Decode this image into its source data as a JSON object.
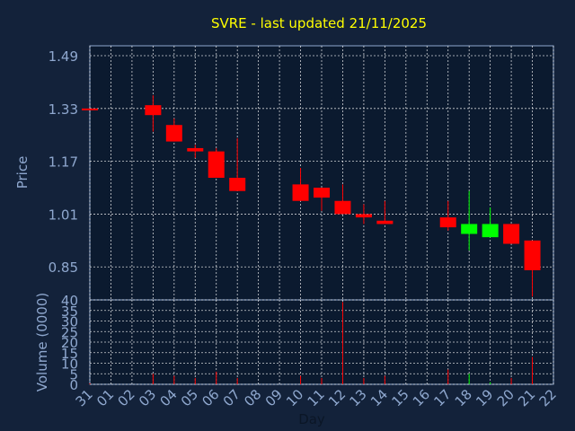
{
  "chart_data": [
    {
      "type": "candlestick",
      "title": "SVRE - last updated 21/11/2025",
      "ylabel": "Price",
      "ylim": [
        0.75,
        1.52
      ],
      "yticks": [
        "1.49",
        "1.33",
        "1.17",
        "1.01",
        "0.85"
      ],
      "grid": true,
      "up_color": "#00ff00",
      "down_color": "#ff0000",
      "candles": [
        {
          "x": "31",
          "open": 1.33,
          "high": 1.33,
          "low": 1.33,
          "close": 1.33
        },
        {
          "x": "03",
          "open": 1.34,
          "high": 1.37,
          "low": 1.26,
          "close": 1.31
        },
        {
          "x": "04",
          "open": 1.28,
          "high": 1.3,
          "low": 1.23,
          "close": 1.23
        },
        {
          "x": "05",
          "open": 1.21,
          "high": 1.22,
          "low": 1.18,
          "close": 1.2
        },
        {
          "x": "06",
          "open": 1.2,
          "high": 1.21,
          "low": 1.12,
          "close": 1.12
        },
        {
          "x": "07",
          "open": 1.12,
          "high": 1.24,
          "low": 1.08,
          "close": 1.08
        },
        {
          "x": "10",
          "open": 1.1,
          "high": 1.15,
          "low": 1.05,
          "close": 1.05
        },
        {
          "x": "11",
          "open": 1.09,
          "high": 1.09,
          "low": 1.02,
          "close": 1.06
        },
        {
          "x": "12",
          "open": 1.05,
          "high": 1.1,
          "low": 1.01,
          "close": 1.01
        },
        {
          "x": "13",
          "open": 1.01,
          "high": 1.04,
          "low": 0.98,
          "close": 1.0
        },
        {
          "x": "14",
          "open": 0.99,
          "high": 1.05,
          "low": 0.98,
          "close": 0.98
        },
        {
          "x": "17",
          "open": 1.0,
          "high": 1.05,
          "low": 0.96,
          "close": 0.97
        },
        {
          "x": "18",
          "open": 0.95,
          "high": 1.08,
          "low": 0.9,
          "close": 0.98
        },
        {
          "x": "19",
          "open": 0.94,
          "high": 1.03,
          "low": 0.94,
          "close": 0.98
        },
        {
          "x": "20",
          "open": 0.98,
          "high": 0.98,
          "low": 0.92,
          "close": 0.92
        },
        {
          "x": "21",
          "open": 0.93,
          "high": 0.93,
          "low": 0.76,
          "close": 0.84
        }
      ]
    },
    {
      "type": "bar",
      "ylabel": "Volume (0000)",
      "ylim": [
        0,
        40
      ],
      "yticks": [
        "40",
        "35",
        "30",
        "25",
        "20",
        "15",
        "10",
        "5",
        "0"
      ],
      "xlabel": "Day",
      "xticks": [
        "31",
        "01",
        "02",
        "03",
        "04",
        "05",
        "06",
        "07",
        "08",
        "09",
        "10",
        "11",
        "12",
        "13",
        "14",
        "15",
        "16",
        "17",
        "18",
        "19",
        "20",
        "21",
        "22"
      ],
      "grid": true,
      "bars": [
        {
          "x": "31",
          "value": 0.5
        },
        {
          "x": "03",
          "value": 5
        },
        {
          "x": "04",
          "value": 4
        },
        {
          "x": "05",
          "value": 3
        },
        {
          "x": "06",
          "value": 6
        },
        {
          "x": "07",
          "value": 3
        },
        {
          "x": "10",
          "value": 4
        },
        {
          "x": "11",
          "value": 3
        },
        {
          "x": "12",
          "value": 39
        },
        {
          "x": "13",
          "value": 3
        },
        {
          "x": "14",
          "value": 4
        },
        {
          "x": "17",
          "value": 7
        },
        {
          "x": "18",
          "value": 5
        },
        {
          "x": "19",
          "value": 1
        },
        {
          "x": "20",
          "value": 3
        },
        {
          "x": "21",
          "value": 13
        }
      ]
    }
  ]
}
